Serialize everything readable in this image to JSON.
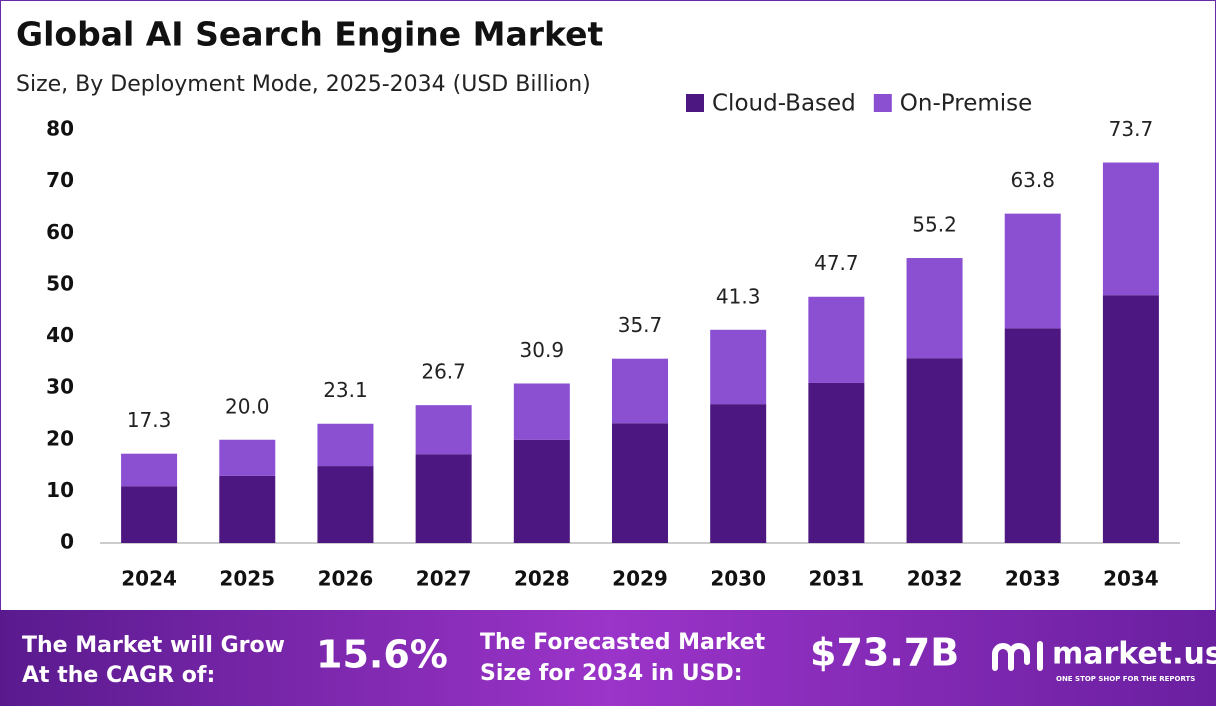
{
  "chart_data": {
    "type": "stacked_bar",
    "title": "Global AI Search Engine Market",
    "subtitle": "Size, By Deployment Mode, 2025-2034 (USD Billion)",
    "categories": [
      "2024",
      "2025",
      "2026",
      "2027",
      "2028",
      "2029",
      "2030",
      "2031",
      "2032",
      "2033",
      "2034"
    ],
    "series": [
      {
        "name": "Cloud-Based",
        "color": "#4d1782",
        "values": [
          11.0,
          13.0,
          14.9,
          17.2,
          20.0,
          23.2,
          26.9,
          31.0,
          35.8,
          41.6,
          48.0
        ]
      },
      {
        "name": "On-Premise",
        "color": "#8b4fd1",
        "values": [
          6.3,
          7.0,
          8.2,
          9.5,
          10.9,
          12.5,
          14.4,
          16.7,
          19.4,
          22.2,
          25.7
        ]
      }
    ],
    "totals": [
      17.3,
      20.0,
      23.1,
      26.7,
      30.9,
      35.7,
      41.3,
      47.7,
      55.2,
      63.8,
      73.7
    ],
    "totals_labels": [
      "17.3",
      "20.0",
      "23.1",
      "26.7",
      "30.9",
      "35.7",
      "41.3",
      "47.7",
      "55.2",
      "63.8",
      "73.7"
    ],
    "ylim": [
      0,
      80
    ],
    "yticks": [
      0,
      10,
      20,
      30,
      40,
      50,
      60,
      70,
      80
    ],
    "grid": false,
    "legend": "top-right"
  },
  "footer": {
    "cagr_text": [
      "The Market will Grow",
      "At the CAGR of:"
    ],
    "cagr_value": "15.6%",
    "size_text": [
      "The Forecasted Market",
      "Size for 2034 in USD:"
    ],
    "size_value": "$73.7B",
    "brand": "market.us",
    "tagline": "ONE STOP SHOP FOR THE REPORTS"
  }
}
